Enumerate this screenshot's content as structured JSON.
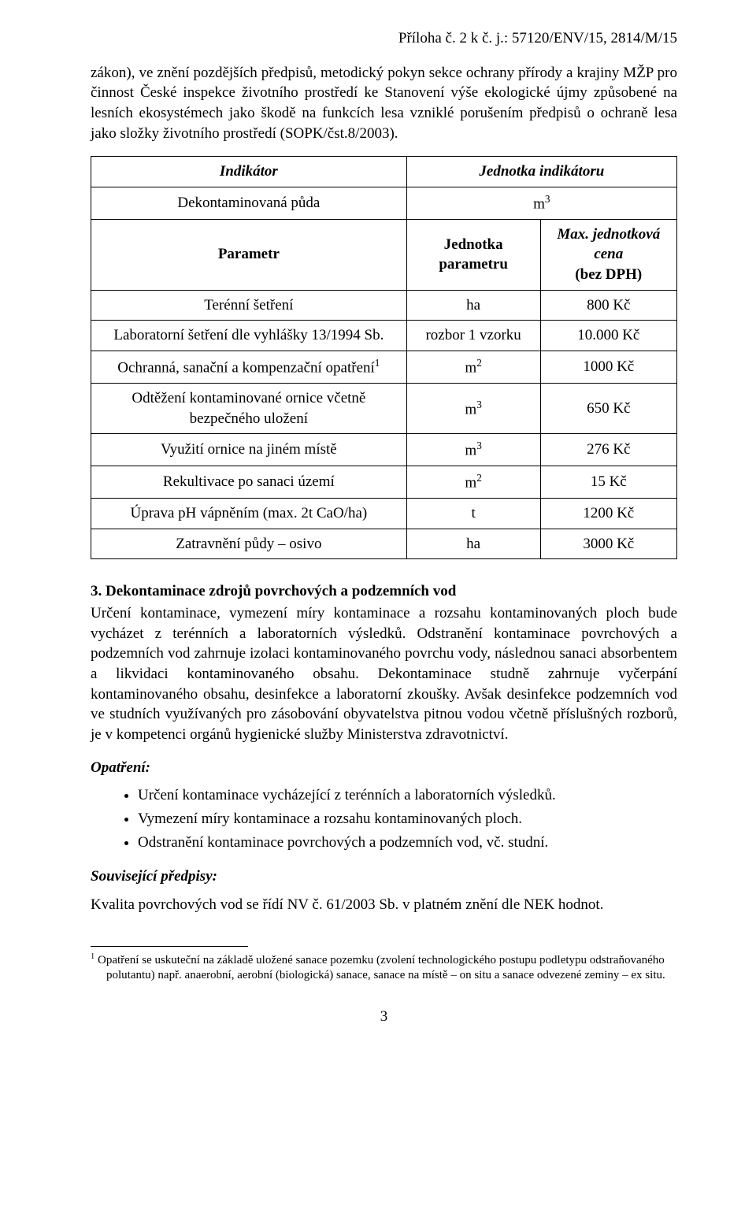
{
  "header": {
    "right_text": "Příloha č. 2 k č. j.: 57120/ENV/15, 2814/M/15"
  },
  "intro": {
    "text": "zákon), ve znění pozdějších předpisů, metodický pokyn sekce ochrany přírody a krajiny MŽP pro činnost České inspekce životního prostředí ke Stanovení výše ekologické újmy způsobené na lesních ekosystémech jako škodě na funkcích lesa vzniklé porušením předpisů o ochraně lesa jako složky životního prostředí (SOPK/čst.8/2003)."
  },
  "table": {
    "h_indikator": "Indikátor",
    "h_unit_ind": "Jednotka indikátoru",
    "r_ind_name": "Dekontaminovaná půda",
    "r_ind_unit_base": "m",
    "r_ind_unit_exp": "3",
    "h_param": "Parametr",
    "h_unit_param": "Jednotka parametru",
    "h_price_l1": "Max. jednotková cena",
    "h_price_l2": "(bez DPH)",
    "rows": [
      {
        "param": "Terénní šetření",
        "unit_plain": "ha",
        "price": "800 Kč"
      },
      {
        "param": "Laboratorní šetření dle vyhlášky 13/1994 Sb.",
        "unit_plain": "rozbor 1 vzorku",
        "price": "10.000 Kč"
      },
      {
        "param_pre": "Ochranná, sanační a kompenzační opatření",
        "param_sup": "1",
        "unit_base": "m",
        "unit_exp": "2",
        "price": "1000 Kč"
      },
      {
        "param": "Odtěžení kontaminované ornice včetně bezpečného uložení",
        "unit_base": "m",
        "unit_exp": "3",
        "price": "650 Kč"
      },
      {
        "param": "Využití ornice na jiném místě",
        "unit_base": "m",
        "unit_exp": "3",
        "price": "276 Kč"
      },
      {
        "param": "Rekultivace po sanaci území",
        "unit_base": "m",
        "unit_exp": "2",
        "price": "15 Kč"
      },
      {
        "param": "Úprava pH vápněním (max. 2t CaO/ha)",
        "unit_plain": "t",
        "price": "1200 Kč"
      },
      {
        "param": "Zatravnění půdy – osivo",
        "unit_plain": "ha",
        "price": "3000 Kč"
      }
    ]
  },
  "section3": {
    "heading": "3. Dekontaminace zdrojů povrchových a podzemních vod",
    "para": "Určení kontaminace, vymezení míry kontaminace a rozsahu kontaminovaných ploch bude vycházet z terénních a laboratorních výsledků. Odstranění kontaminace povrchových a podzemních vod zahrnuje izolaci kontaminovaného povrchu vody, následnou sanaci absorbentem a likvidaci kontaminovaného obsahu. Dekontaminace studně zahrnuje vyčerpání kontaminovaného obsahu, desinfekce a laboratorní zkoušky. Avšak desinfekce podzemních vod ve studních využívaných pro zásobování obyvatelstva pitnou vodou včetně příslušných rozborů, je v kompetenci orgánů hygienické služby Ministerstva zdravotnictví.",
    "opatreni_label": "Opatření:",
    "bullets": [
      "Určení kontaminace vycházející z terénních a laboratorních výsledků.",
      "Vymezení míry kontaminace a rozsahu kontaminovaných ploch.",
      "Odstranění kontaminace povrchových a podzemních vod, vč. studní."
    ],
    "souvisejici_label": "Související předpisy:",
    "souvisejici_text": "Kvalita povrchových vod se řídí NV č. 61/2003 Sb. v platném znění dle NEK hodnot."
  },
  "footnote": {
    "marker": "1",
    "line1": " Opatření se uskuteční na základě uložené sanace pozemku (zvolení technologického postupu podletypu odstraňovaného",
    "line2": "polutantu) např. anaerobní, aerobní (biologická) sanace, sanace na místě – on situ a sanace odvezené zeminy – ex situ."
  },
  "page_number": "3"
}
